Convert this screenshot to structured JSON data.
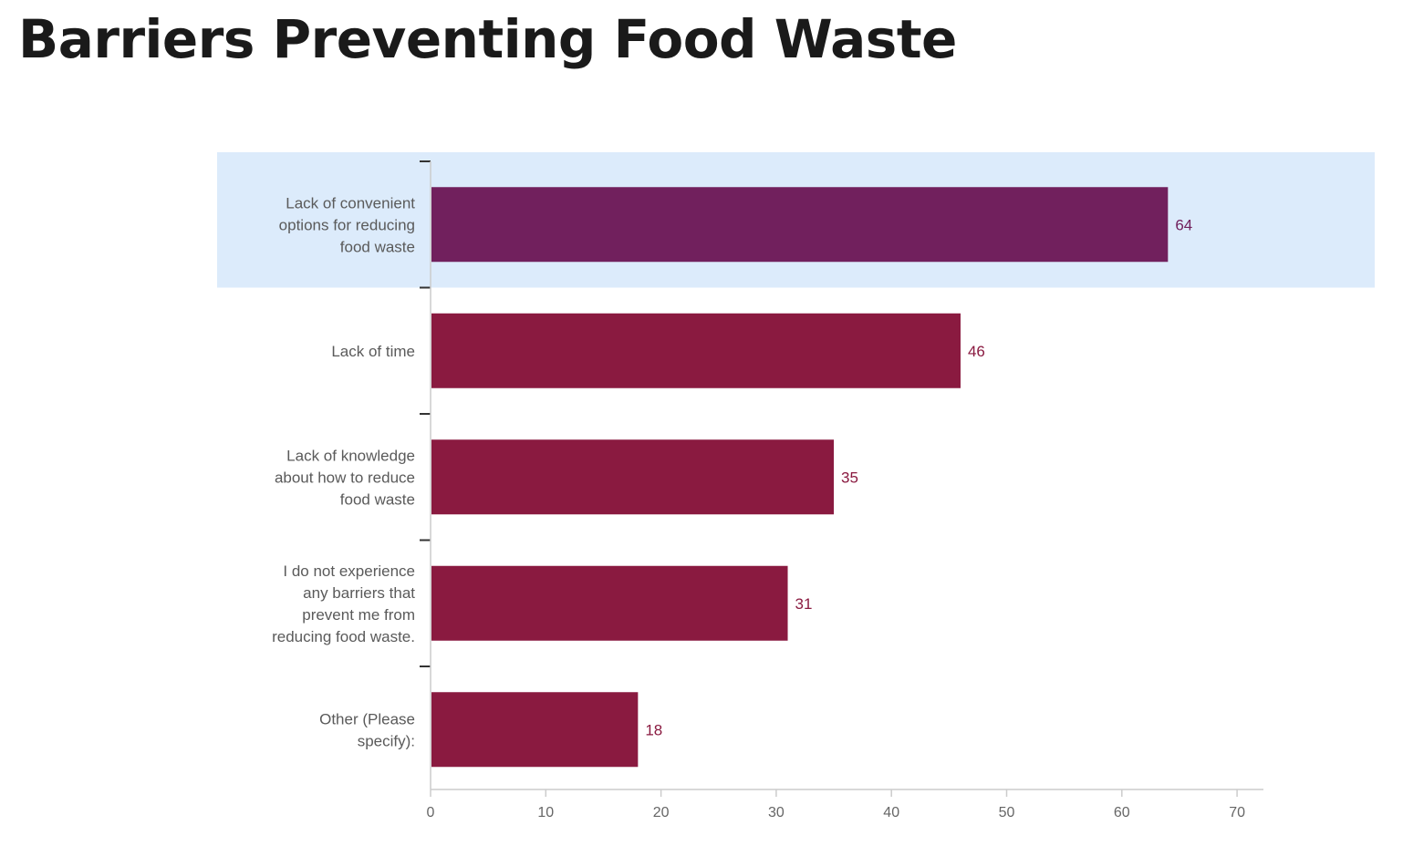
{
  "page": {
    "title": "Barriers Preventing Food Waste"
  },
  "chart_data": {
    "type": "bar",
    "orientation": "horizontal",
    "title": "Barriers Preventing Food Waste",
    "xlabel": "",
    "ylabel": "",
    "categories": [
      [
        "Lack of convenient",
        "options for reducing",
        "food waste"
      ],
      [
        "Lack of time"
      ],
      [
        "Lack of knowledge",
        "about how to reduce",
        "food waste"
      ],
      [
        "I do not experience",
        "any barriers that",
        "prevent me from",
        "reducing food waste."
      ],
      [
        "Other (Please",
        "specify):"
      ]
    ],
    "values": [
      64,
      46,
      35,
      31,
      18
    ],
    "data_labels": [
      "64",
      "46",
      "35",
      "31",
      "18"
    ],
    "xlim": [
      0,
      72
    ],
    "ticks": [
      0,
      10,
      20,
      30,
      40,
      50,
      60,
      70
    ],
    "tick_labels": [
      "0",
      "10",
      "20",
      "30",
      "40",
      "50",
      "60",
      "70"
    ],
    "highlighted_index": 0,
    "grid": false,
    "legend": "none",
    "colors": {
      "highlighted_bar": "#71205d",
      "bar": "#8a1a40",
      "highlight_band": "#dcebfb",
      "highlighted_label": "#71205d",
      "label": "#8a1a40",
      "axis": "#cccccc",
      "category_tick": "#333333"
    }
  }
}
